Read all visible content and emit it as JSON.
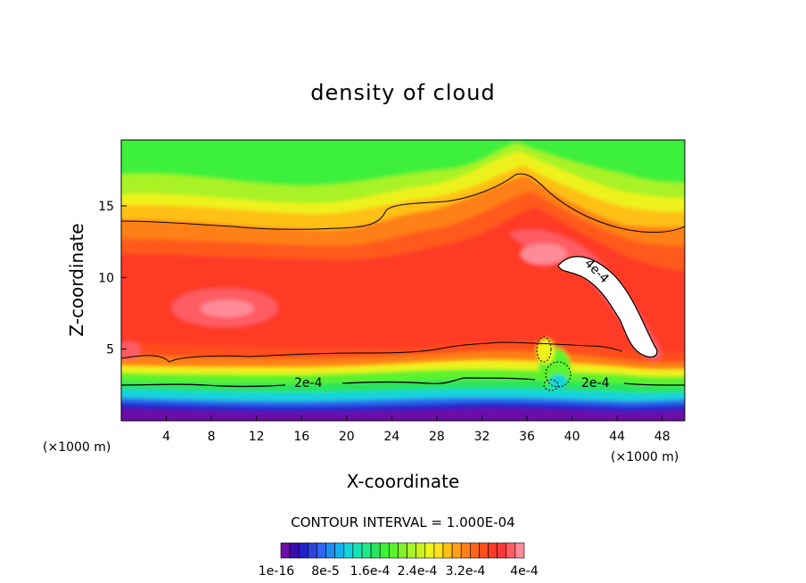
{
  "chart_data": {
    "type": "heatmap",
    "title": "density of cloud",
    "xlabel": "X-coordinate",
    "ylabel": "Z-coordinate",
    "x_unit": "(×1000 m)",
    "y_unit": "(×1000 m)",
    "xlim": [
      0,
      50
    ],
    "ylim": [
      0,
      19.6
    ],
    "x_ticks": [
      4,
      8,
      12,
      16,
      20,
      24,
      28,
      32,
      36,
      40,
      44,
      48
    ],
    "y_ticks": [
      5,
      10,
      15
    ],
    "contour_interval_text": "CONTOUR INTERVAL = 1.000E-04",
    "contour_labels": [
      {
        "text": "2e-4",
        "x": 15.5,
        "z": 2.8
      },
      {
        "text": "2e-4",
        "x": 42.6,
        "z": 2.9
      },
      {
        "text": "4e-4",
        "x": 42.5,
        "z": 10.4
      }
    ],
    "colorbar": {
      "colors": [
        "#6c0ea8",
        "#3a0cb0",
        "#2222c8",
        "#2c44dd",
        "#2e66ee",
        "#1f8cf2",
        "#12b2ee",
        "#12d4dc",
        "#16e4b4",
        "#20e888",
        "#2ae45c",
        "#3cf03a",
        "#5cf22e",
        "#80f22c",
        "#a8f226",
        "#ccf21c",
        "#eef21a",
        "#ffe01a",
        "#ffc014",
        "#ffa018",
        "#ff8018",
        "#ff6418",
        "#ff4e1e",
        "#ff3a28",
        "#ff3838",
        "#ff5c64",
        "#ff8a98"
      ],
      "tick_labels": [
        "1e-16",
        "8e-5",
        "1.6e-4",
        "2.4e-4",
        "3.2e-4",
        "4e-4"
      ]
    },
    "grid": false
  }
}
